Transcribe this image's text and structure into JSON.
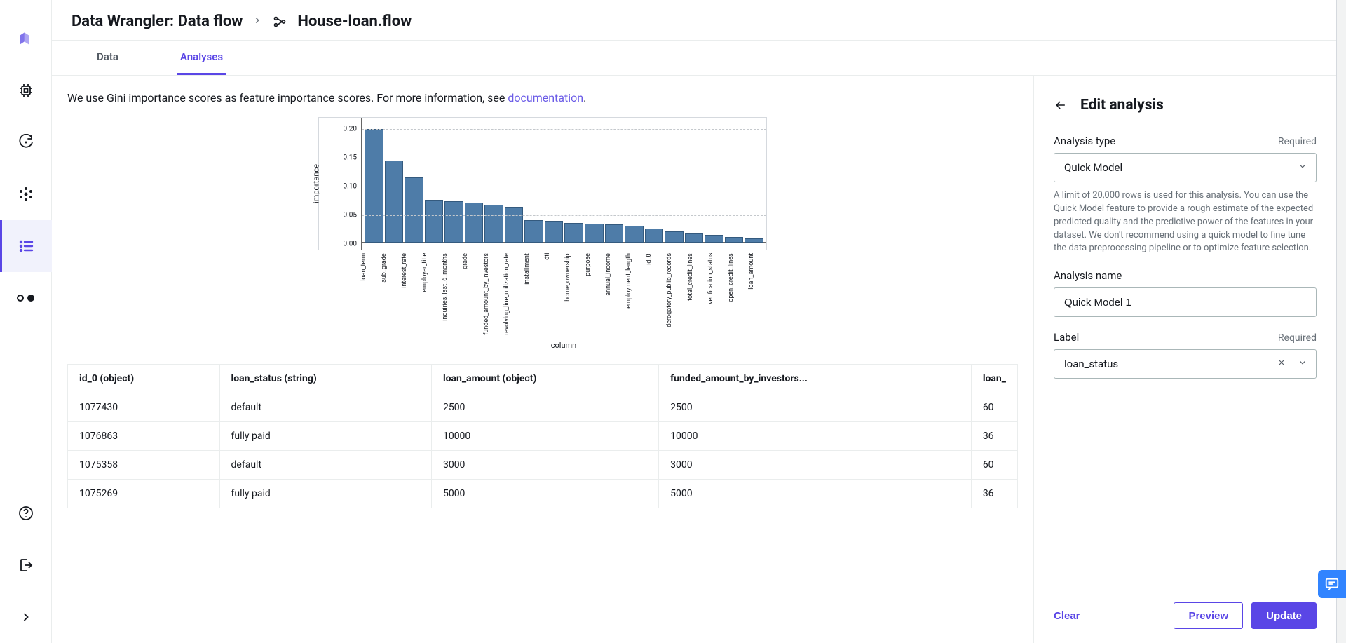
{
  "breadcrumb": {
    "root": "Data Wrangler: Data flow",
    "flow_name": "House-loan.flow"
  },
  "tabs": {
    "data": "Data",
    "analyses": "Analyses",
    "active": "analyses"
  },
  "explain": {
    "prefix": "We use Gini importance scores as feature importance scores. For more information, see ",
    "link_text": "documentation",
    "suffix": "."
  },
  "nav_rail": {
    "icons": [
      "logo",
      "chip-icon",
      "refresh-icon",
      "asterisk-icon",
      "list-icon",
      "toggle-icon"
    ],
    "bottom_icons": [
      "help-icon",
      "logout-icon",
      "expand-icon"
    ],
    "active": "list-icon"
  },
  "chart": {
    "type": "bar",
    "ylabel": "importance",
    "xlabel": "column",
    "ylim": [
      0.0,
      0.21
    ],
    "yticks": [
      0.0,
      0.05,
      0.1,
      0.15,
      0.2
    ],
    "categories": [
      "loan_term",
      "sub_grade",
      "interest_rate",
      "employer_title",
      "inquiries_last_6_months",
      "grade",
      "funded_amount_by_investors",
      "revolving_line_utilization_rate",
      "installment",
      "dti",
      "home_ownership",
      "purpose",
      "annual_income",
      "employment_length",
      "id_0",
      "derogatory_public_records",
      "total_credit_lines",
      "verification_status",
      "open_credit_lines",
      "loan_amount"
    ],
    "values": [
      0.2,
      0.145,
      0.115,
      0.075,
      0.073,
      0.07,
      0.067,
      0.063,
      0.04,
      0.038,
      0.035,
      0.033,
      0.032,
      0.03,
      0.025,
      0.02,
      0.016,
      0.014,
      0.01,
      0.007
    ],
    "bar_color": "#4e7ca8",
    "bar_border": "#345a7e",
    "grid_color": "#c4c8cc",
    "grid_dash": true,
    "background": "#ffffff",
    "tick_fontsize": 10
  },
  "table": {
    "columns": [
      "id_0 (object)",
      "loan_status (string)",
      "loan_amount (object)",
      "funded_amount_by_investors...",
      "loan_"
    ],
    "rows": [
      [
        "1077430",
        "default",
        "2500",
        "2500",
        "60"
      ],
      [
        "1076863",
        "fully paid",
        "10000",
        "10000",
        "36"
      ],
      [
        "1075358",
        "default",
        "3000",
        "3000",
        "60"
      ],
      [
        "1075269",
        "fully paid",
        "5000",
        "5000",
        "36"
      ]
    ]
  },
  "side_panel": {
    "title": "Edit analysis",
    "required_text": "Required",
    "analysis_type": {
      "label": "Analysis type",
      "value": "Quick Model",
      "help": "A limit of 20,000 rows is used for this analysis. You can use the Quick Model feature to provide a rough estimate of the expected predicted quality and the predictive power of the features in your dataset. We don't recommend using a quick model to fine tune the data preprocessing pipeline or to optimize feature selection."
    },
    "analysis_name": {
      "label": "Analysis name",
      "value": "Quick Model 1"
    },
    "label_field": {
      "label": "Label",
      "value": "loan_status"
    },
    "footer": {
      "clear": "Clear",
      "preview": "Preview",
      "update": "Update"
    }
  },
  "colors": {
    "accent": "#5a46e6",
    "text_secondary": "#687078",
    "border": "#eaeded",
    "chat_blue": "#3184ff"
  }
}
